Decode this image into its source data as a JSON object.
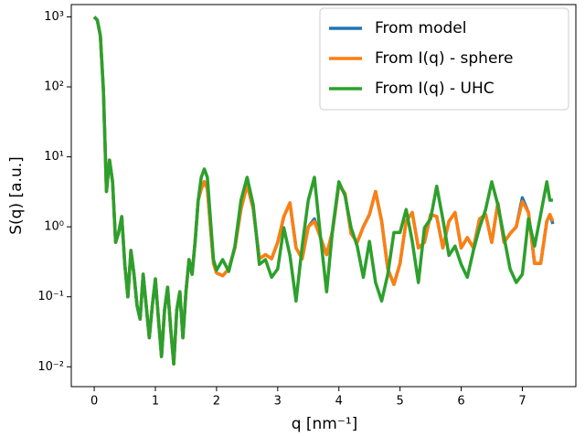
{
  "chart_data": {
    "type": "line",
    "xlabel": "q [nm⁻¹]",
    "ylabel": "S(q) [a.u.]",
    "yscale": "log",
    "legend": "upper right",
    "xlim": [
      -0.375,
      7.875
    ],
    "xticks": [
      0,
      1,
      2,
      3,
      4,
      5,
      6,
      7
    ],
    "ylim": [
      0.0052,
      1500
    ],
    "yticks": [
      {
        "value": 0.01,
        "label": "10⁻²"
      },
      {
        "value": 0.1,
        "label": "10⁻¹"
      },
      {
        "value": 1,
        "label": "10⁰"
      },
      {
        "value": 10,
        "label": "10¹"
      },
      {
        "value": 100,
        "label": "10²"
      },
      {
        "value": 1000,
        "label": "10³"
      }
    ],
    "x": [
      0,
      0.05,
      0.1,
      0.15,
      0.2,
      0.25,
      0.3,
      0.35,
      0.4,
      0.45,
      0.5,
      0.55,
      0.6,
      0.65,
      0.7,
      0.75,
      0.8,
      0.85,
      0.9,
      0.95,
      1.0,
      1.05,
      1.1,
      1.15,
      1.2,
      1.25,
      1.3,
      1.35,
      1.4,
      1.45,
      1.5,
      1.55,
      1.6,
      1.65,
      1.7,
      1.75,
      1.8,
      1.85,
      1.9,
      1.95,
      2.0,
      2.1,
      2.2,
      2.3,
      2.4,
      2.5,
      2.6,
      2.7,
      2.8,
      2.9,
      3.0,
      3.1,
      3.2,
      3.3,
      3.4,
      3.5,
      3.6,
      3.7,
      3.8,
      3.9,
      4.0,
      4.1,
      4.2,
      4.3,
      4.4,
      4.5,
      4.6,
      4.7,
      4.8,
      4.9,
      5.0,
      5.1,
      5.2,
      5.3,
      5.4,
      5.5,
      5.6,
      5.7,
      5.8,
      5.9,
      6.0,
      6.1,
      6.2,
      6.3,
      6.4,
      6.5,
      6.6,
      6.7,
      6.8,
      6.9,
      7.0,
      7.1,
      7.2,
      7.3,
      7.4,
      7.45,
      7.5
    ],
    "series": [
      {
        "name": "From model",
        "color": "#1f77b4",
        "values": [
          1000,
          900,
          540,
          90,
          3.2,
          9,
          4.4,
          0.6,
          0.83,
          1.4,
          0.29,
          0.1,
          0.46,
          0.21,
          0.075,
          0.048,
          0.21,
          0.075,
          0.026,
          0.075,
          0.18,
          0.048,
          0.014,
          0.065,
          0.137,
          0.035,
          0.011,
          0.065,
          0.118,
          0.026,
          0.118,
          0.34,
          0.21,
          0.62,
          2.4,
          3.5,
          4.4,
          3.5,
          1.0,
          0.3,
          0.22,
          0.2,
          0.25,
          0.5,
          1.8,
          4.0,
          1.8,
          0.35,
          0.4,
          0.35,
          0.6,
          1.4,
          2.2,
          0.5,
          0.35,
          1.0,
          1.3,
          0.7,
          0.4,
          0.9,
          4.0,
          3.0,
          0.8,
          0.6,
          1.0,
          1.5,
          3.2,
          1.2,
          0.25,
          0.15,
          0.3,
          1.2,
          1.6,
          0.5,
          0.6,
          1.5,
          1.4,
          0.5,
          1.2,
          1.6,
          0.5,
          0.7,
          0.5,
          1.3,
          1.5,
          0.6,
          2.2,
          0.6,
          0.8,
          1.0,
          2.6,
          1.6,
          0.3,
          0.3,
          1.2,
          1.5,
          1.1
        ]
      },
      {
        "name": "From I(q) - sphere",
        "color": "#ff7f0e",
        "values": [
          1000,
          900,
          540,
          90,
          3.2,
          9,
          4.4,
          0.6,
          0.83,
          1.4,
          0.29,
          0.1,
          0.46,
          0.21,
          0.075,
          0.048,
          0.21,
          0.075,
          0.026,
          0.075,
          0.18,
          0.048,
          0.014,
          0.065,
          0.137,
          0.035,
          0.011,
          0.065,
          0.118,
          0.026,
          0.118,
          0.34,
          0.21,
          0.62,
          2.4,
          3.5,
          4.4,
          3.5,
          1.0,
          0.3,
          0.22,
          0.2,
          0.25,
          0.5,
          1.8,
          4.0,
          1.8,
          0.35,
          0.4,
          0.35,
          0.6,
          1.4,
          2.2,
          0.5,
          0.35,
          1.0,
          1.2,
          0.7,
          0.4,
          0.9,
          4.0,
          3.0,
          0.8,
          0.6,
          1.0,
          1.5,
          3.2,
          1.2,
          0.25,
          0.15,
          0.3,
          1.2,
          1.6,
          0.5,
          0.6,
          1.5,
          1.4,
          0.5,
          1.2,
          1.6,
          0.5,
          0.7,
          0.5,
          1.3,
          1.5,
          0.6,
          2.2,
          0.6,
          0.8,
          1.0,
          2.3,
          1.6,
          0.3,
          0.3,
          1.2,
          1.5,
          1.2
        ]
      },
      {
        "name": "From I(q) - UHC",
        "color": "#2ca02c",
        "values": [
          1000,
          900,
          540,
          90,
          3.2,
          9,
          4.4,
          0.6,
          0.83,
          1.4,
          0.29,
          0.1,
          0.46,
          0.21,
          0.075,
          0.048,
          0.21,
          0.075,
          0.026,
          0.075,
          0.18,
          0.048,
          0.014,
          0.065,
          0.137,
          0.035,
          0.011,
          0.065,
          0.118,
          0.026,
          0.118,
          0.34,
          0.21,
          0.62,
          2.4,
          5.1,
          6.7,
          5.1,
          1.3,
          0.34,
          0.24,
          0.34,
          0.23,
          0.53,
          2.4,
          5.1,
          2.06,
          0.29,
          0.34,
          0.19,
          0.25,
          0.97,
          0.39,
          0.087,
          0.53,
          2.4,
          5.1,
          0.72,
          0.118,
          0.97,
          4.4,
          2.8,
          0.97,
          0.53,
          0.19,
          0.62,
          0.16,
          0.087,
          0.21,
          0.83,
          0.83,
          1.77,
          0.62,
          0.16,
          0.97,
          1.3,
          3.8,
          1.3,
          0.39,
          0.53,
          0.29,
          0.19,
          0.46,
          0.97,
          1.77,
          4.4,
          2.06,
          0.72,
          0.25,
          0.16,
          0.21,
          1.3,
          0.53,
          1.5,
          4.4,
          2.4,
          2.4
        ]
      }
    ]
  }
}
